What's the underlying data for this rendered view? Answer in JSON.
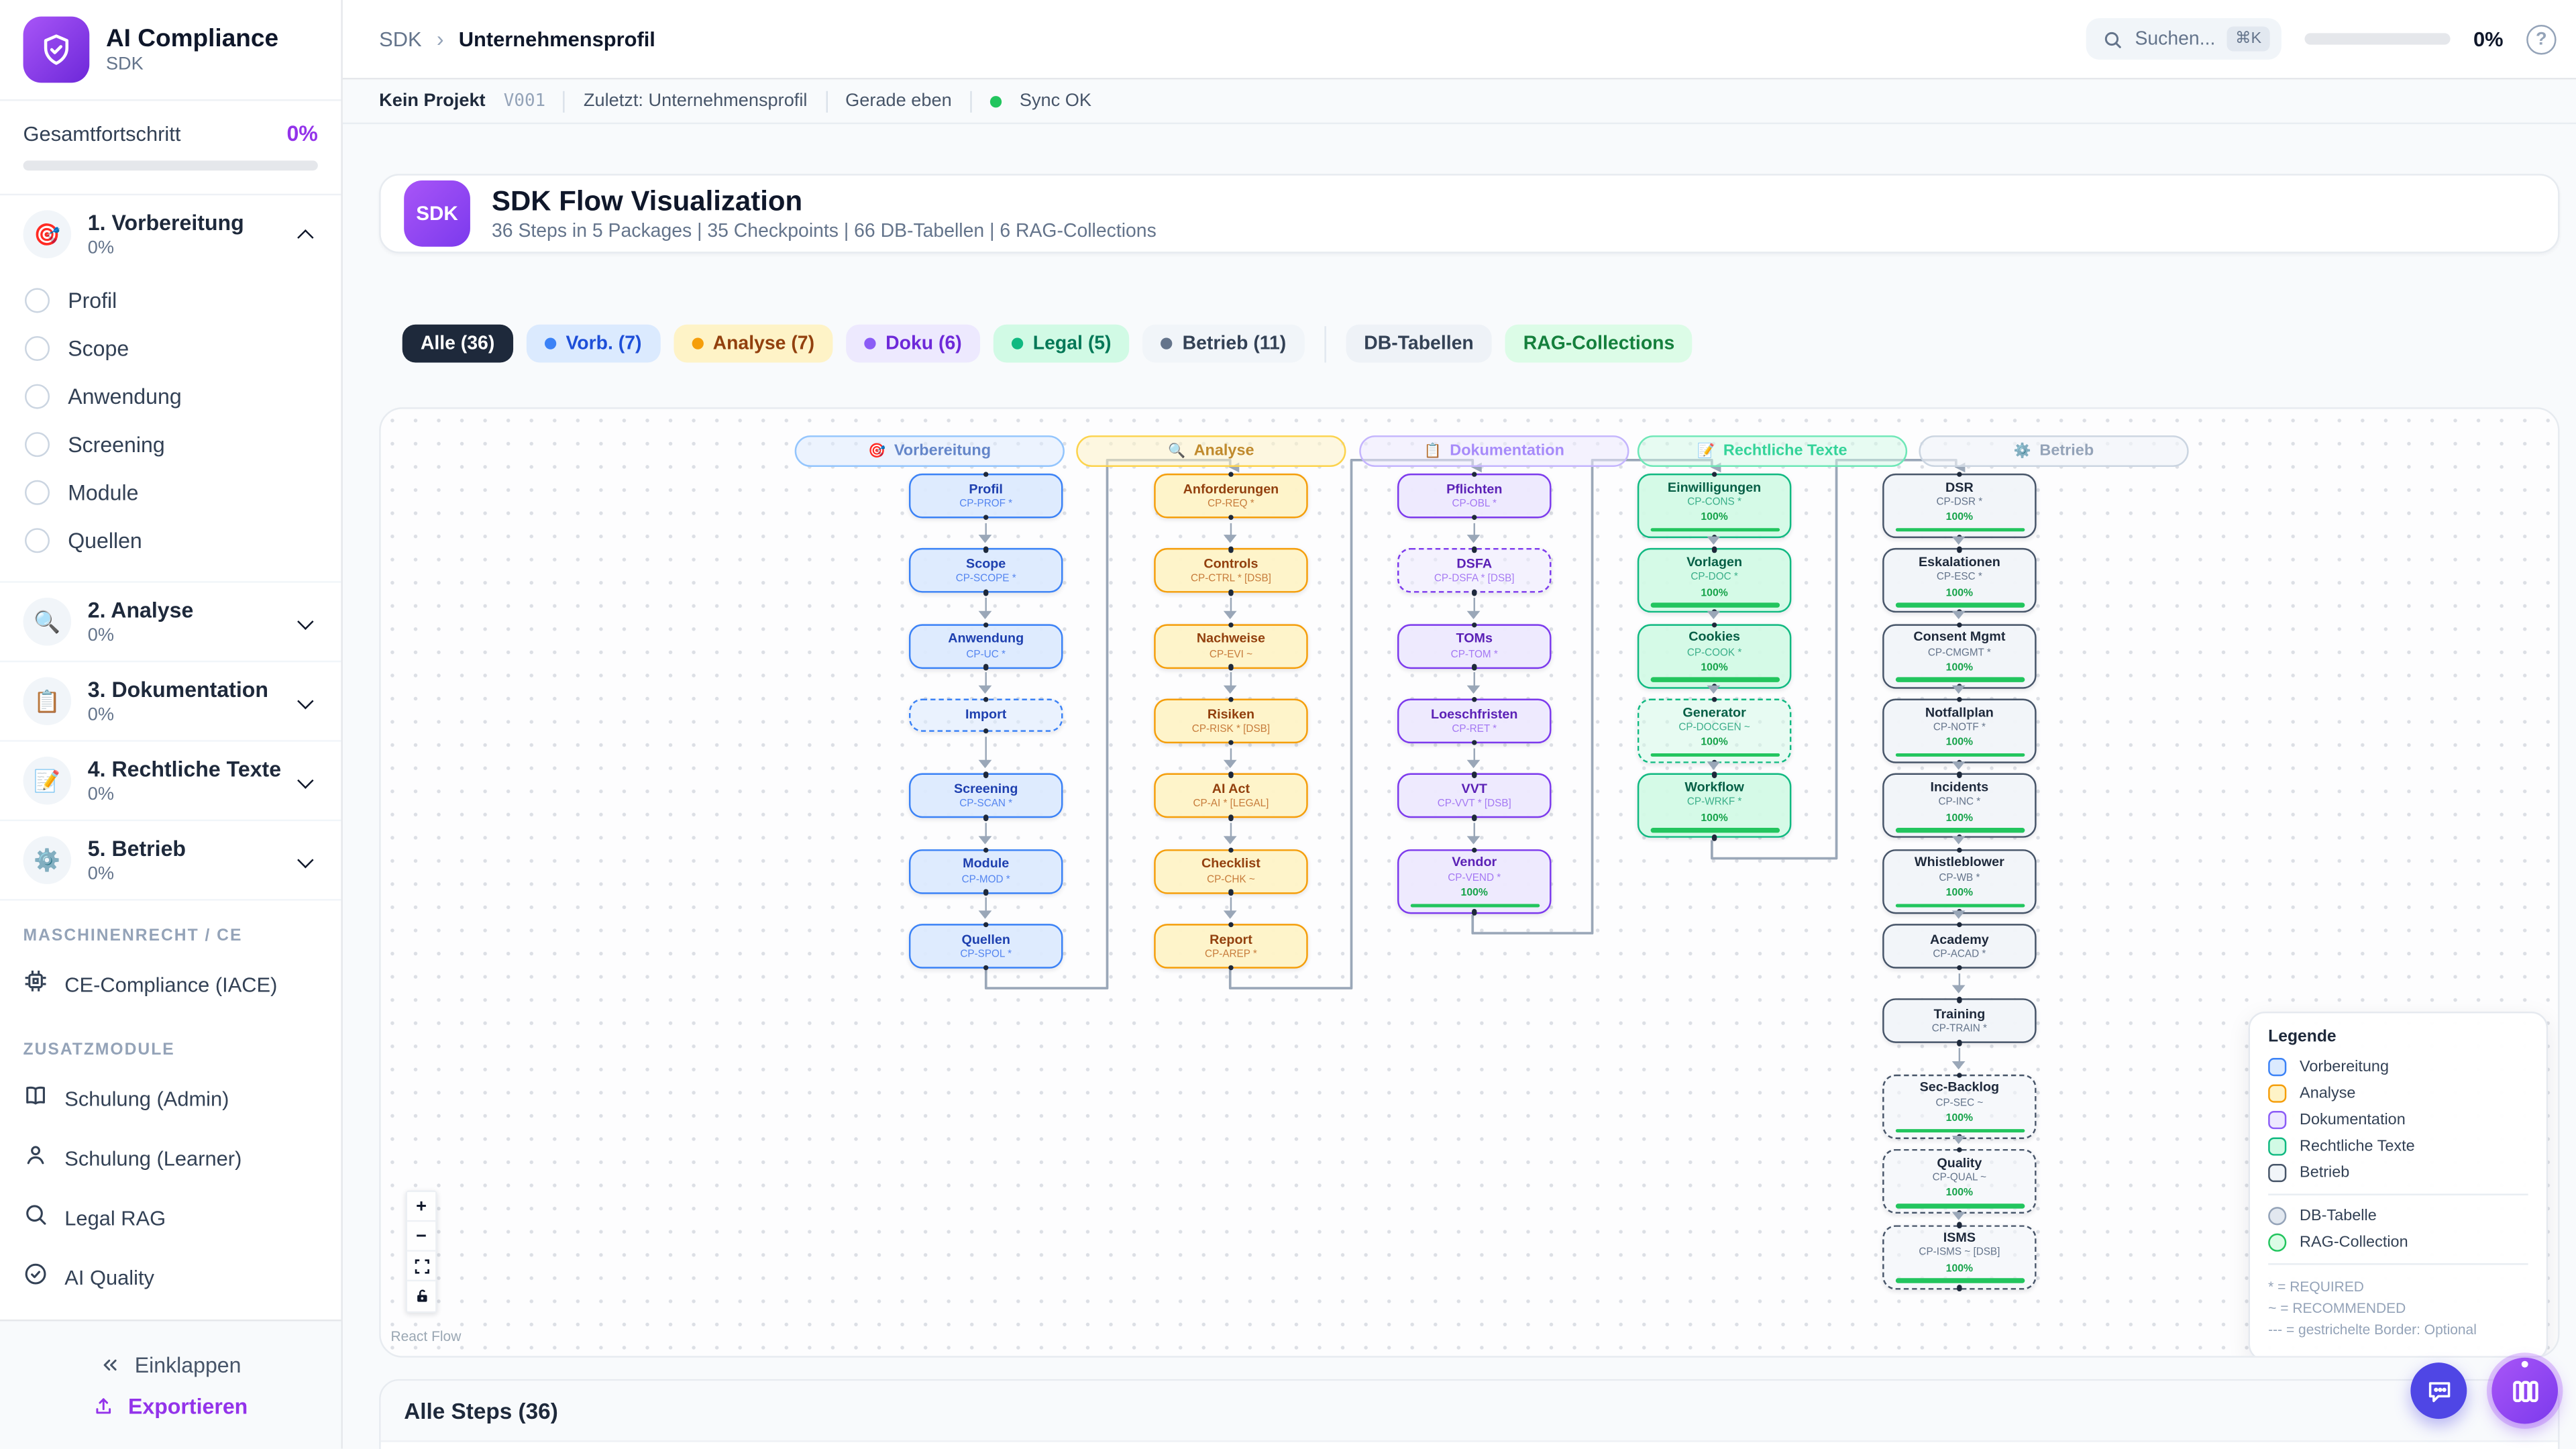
{
  "sidebar": {
    "logo": {
      "title": "AI Compliance",
      "subtitle": "SDK"
    },
    "progress": {
      "label": "Gesamtfortschritt",
      "value": "0%"
    },
    "sections": [
      {
        "title": "1. Vorbereitung",
        "pct": "0%",
        "emoji": "🎯",
        "expanded": true,
        "items": [
          "Profil",
          "Scope",
          "Anwendung",
          "Screening",
          "Module",
          "Quellen"
        ]
      },
      {
        "title": "2. Analyse",
        "pct": "0%",
        "emoji": "🔍",
        "expanded": false,
        "items": []
      },
      {
        "title": "3. Dokumentation",
        "pct": "0%",
        "emoji": "📋",
        "expanded": false,
        "items": []
      },
      {
        "title": "4. Rechtliche Texte",
        "pct": "0%",
        "emoji": "📝",
        "expanded": false,
        "items": []
      },
      {
        "title": "5. Betrieb",
        "pct": "0%",
        "emoji": "⚙️",
        "expanded": false,
        "items": []
      }
    ],
    "groups": [
      {
        "label": "MASCHINENRECHT / CE",
        "items": [
          {
            "label": "CE-Compliance (IACE)",
            "icon": "cpu-icon"
          }
        ]
      },
      {
        "label": "ZUSATZMODULE",
        "items": [
          {
            "label": "Schulung (Admin)",
            "icon": "book-icon"
          },
          {
            "label": "Schulung (Learner)",
            "icon": "person-icon"
          },
          {
            "label": "Legal RAG",
            "icon": "search-icon"
          },
          {
            "label": "AI Quality",
            "icon": "check-circle-icon"
          }
        ]
      }
    ],
    "footer": {
      "collapse": "Einklappen",
      "export": "Exportieren"
    }
  },
  "topbar": {
    "breadcrumb": {
      "root": "SDK",
      "separator": "›",
      "current": "Unternehmensprofil"
    },
    "search": {
      "placeholder": "Suchen...",
      "kbd": "⌘K"
    },
    "progress": "0%",
    "help": "?"
  },
  "statusbar": {
    "project": "Kein Projekt",
    "version": "V001",
    "last": "Zuletzt: Unternehmensprofil",
    "time": "Gerade eben",
    "sync": "Sync OK"
  },
  "hero": {
    "badge": "SDK",
    "title": "SDK Flow Visualization",
    "subtitle": "36 Steps in 5 Packages | 35 Checkpoints | 66 DB-Tabellen | 6 RAG-Collections"
  },
  "filters": [
    {
      "label": "Alle (36)",
      "style": "active"
    },
    {
      "label": "Vorb. (7)",
      "style": "blue",
      "dot": "#3b82f6"
    },
    {
      "label": "Analyse (7)",
      "style": "amber",
      "dot": "#f59e0b"
    },
    {
      "label": "Doku (6)",
      "style": "purple",
      "dot": "#8b5cf6"
    },
    {
      "label": "Legal (5)",
      "style": "green",
      "dot": "#10b981"
    },
    {
      "label": "Betrieb (11)",
      "style": "slate",
      "dot": "#64748b"
    },
    {
      "label": "DB-Tabellen",
      "style": "db",
      "divider_before": true
    },
    {
      "label": "RAG-Collections",
      "style": "rag"
    }
  ],
  "flow": {
    "columns": [
      {
        "name": "Vorbereitung",
        "emoji": "🎯",
        "cat": "blue",
        "nodes": [
          {
            "title": "Profil",
            "code": "CP-PROF *"
          },
          {
            "title": "Scope",
            "code": "CP-SCOPE *"
          },
          {
            "title": "Anwendung",
            "code": "CP-UC *"
          },
          {
            "title": "Import",
            "code": null,
            "dashed": true
          },
          {
            "title": "Screening",
            "code": "CP-SCAN *"
          },
          {
            "title": "Module",
            "code": "CP-MOD *"
          },
          {
            "title": "Quellen",
            "code": "CP-SPOL *"
          }
        ]
      },
      {
        "name": "Analyse",
        "emoji": "🔍",
        "cat": "amber",
        "nodes": [
          {
            "title": "Anforderungen",
            "code": "CP-REQ *"
          },
          {
            "title": "Controls",
            "code": "CP-CTRL * [DSB]"
          },
          {
            "title": "Nachweise",
            "code": "CP-EVI ~"
          },
          {
            "title": "Risiken",
            "code": "CP-RISK * [DSB]"
          },
          {
            "title": "AI Act",
            "code": "CP-AI * [LEGAL]"
          },
          {
            "title": "Checklist",
            "code": "CP-CHK ~"
          },
          {
            "title": "Report",
            "code": "CP-AREP *"
          }
        ]
      },
      {
        "name": "Dokumentation",
        "emoji": "📋",
        "cat": "purple",
        "nodes": [
          {
            "title": "Pflichten",
            "code": "CP-OBL *"
          },
          {
            "title": "DSFA",
            "code": "CP-DSFA * [DSB]",
            "dashed": true
          },
          {
            "title": "TOMs",
            "code": "CP-TOM *"
          },
          {
            "title": "Loeschfristen",
            "code": "CP-RET *"
          },
          {
            "title": "VVT",
            "code": "CP-VVT * [DSB]"
          },
          {
            "title": "Vendor",
            "code": "CP-VEND *",
            "pct": "100%"
          }
        ]
      },
      {
        "name": "Rechtliche Texte",
        "emoji": "📝",
        "cat": "green",
        "nodes": [
          {
            "title": "Einwilligungen",
            "code": "CP-CONS *",
            "pct": "100%"
          },
          {
            "title": "Vorlagen",
            "code": "CP-DOC *",
            "pct": "100%"
          },
          {
            "title": "Cookies",
            "code": "CP-COOK *",
            "pct": "100%"
          },
          {
            "title": "Generator",
            "code": "CP-DOCGEN ~",
            "pct": "100%",
            "dashed": true
          },
          {
            "title": "Workflow",
            "code": "CP-WRKF *",
            "pct": "100%"
          }
        ]
      },
      {
        "name": "Betrieb",
        "emoji": "⚙️",
        "cat": "slate",
        "nodes": [
          {
            "title": "DSR",
            "code": "CP-DSR *",
            "pct": "100%"
          },
          {
            "title": "Eskalationen",
            "code": "CP-ESC *",
            "pct": "100%"
          },
          {
            "title": "Consent Mgmt",
            "code": "CP-CMGMT *",
            "pct": "100%"
          },
          {
            "title": "Notfallplan",
            "code": "CP-NOTF *",
            "pct": "100%"
          },
          {
            "title": "Incidents",
            "code": "CP-INC *",
            "pct": "100%"
          },
          {
            "title": "Whistleblower",
            "code": "CP-WB *",
            "pct": "100%"
          },
          {
            "title": "Academy",
            "code": "CP-ACAD *"
          },
          {
            "title": "Training",
            "code": "CP-TRAIN *"
          },
          {
            "title": "Sec-Backlog",
            "code": "CP-SEC ~",
            "pct": "100%",
            "dashed": true
          },
          {
            "title": "Quality",
            "code": "CP-QUAL ~",
            "pct": "100%",
            "dashed": true
          },
          {
            "title": "ISMS",
            "code": "CP-ISMS ~ [DSB]",
            "pct": "100%",
            "dashed": true
          }
        ]
      }
    ],
    "links": [
      {
        "from": [
          0,
          6
        ],
        "to": [
          1,
          0
        ]
      },
      {
        "from": [
          1,
          6
        ],
        "to": [
          2,
          0
        ]
      },
      {
        "from": [
          2,
          5
        ],
        "to": [
          3,
          0
        ]
      },
      {
        "from": [
          3,
          4
        ],
        "to": [
          4,
          0
        ]
      }
    ],
    "legend": {
      "title": "Legende",
      "categories": [
        {
          "label": "Vorbereitung",
          "border": "#3b82f6",
          "fill": "#dbeafe"
        },
        {
          "label": "Analyse",
          "border": "#f59e0b",
          "fill": "#fef3c7"
        },
        {
          "label": "Dokumentation",
          "border": "#8b5cf6",
          "fill": "#ede9fe"
        },
        {
          "label": "Rechtliche Texte",
          "border": "#10b981",
          "fill": "#d1fae5"
        },
        {
          "label": "Betrieb",
          "border": "#475569",
          "fill": "#f1f5f9"
        }
      ],
      "shapes": [
        {
          "label": "DB-Tabelle",
          "border": "#94a3b8",
          "fill": "#e2e8f0"
        },
        {
          "label": "RAG-Collection",
          "border": "#22c55e",
          "fill": "#dcfce7"
        }
      ],
      "notes": [
        "* = REQUIRED",
        "~ = RECOMMENDED",
        "--- = gestrichelte Border: Optional"
      ]
    },
    "controls": [
      {
        "name": "zoom-in",
        "glyph": "+"
      },
      {
        "name": "zoom-out",
        "glyph": "−"
      },
      {
        "name": "fit-view",
        "glyph": "⛶"
      },
      {
        "name": "lock",
        "glyph": "🔓"
      }
    ],
    "attribution": "React Flow"
  },
  "bottom": {
    "title": "Alle Steps (36)"
  },
  "colors": {
    "accent": "#7c3aed",
    "progress_green": "#22c55e",
    "sync_green": "#22c55e",
    "chip_active_bg": "#1e293b"
  }
}
